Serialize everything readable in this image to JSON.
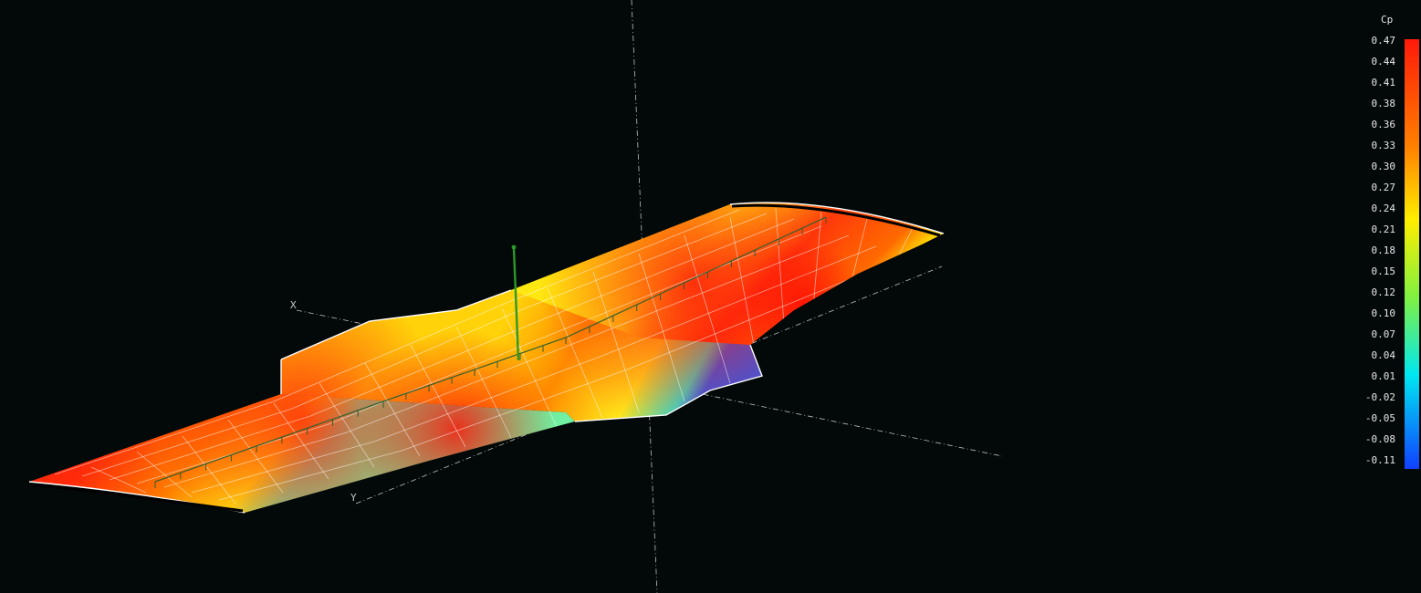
{
  "scene": {
    "axes": {
      "x_label": "X",
      "y_label": "Y"
    }
  },
  "legend": {
    "title": "Cp",
    "ticks": [
      "0.47",
      "0.44",
      "0.41",
      "0.38",
      "0.36",
      "0.33",
      "0.30",
      "0.27",
      "0.24",
      "0.21",
      "0.18",
      "0.15",
      "0.12",
      "0.10",
      "0.07",
      "0.04",
      "0.01",
      "-0.02",
      "-0.05",
      "-0.08",
      "-0.11"
    ],
    "colors": {
      "max": "#ff1a0a",
      "high": "#ff6a00",
      "mid_high": "#ffee00",
      "mid": "#80f040",
      "mid_low": "#00e8f0",
      "min": "#1040ff"
    }
  }
}
